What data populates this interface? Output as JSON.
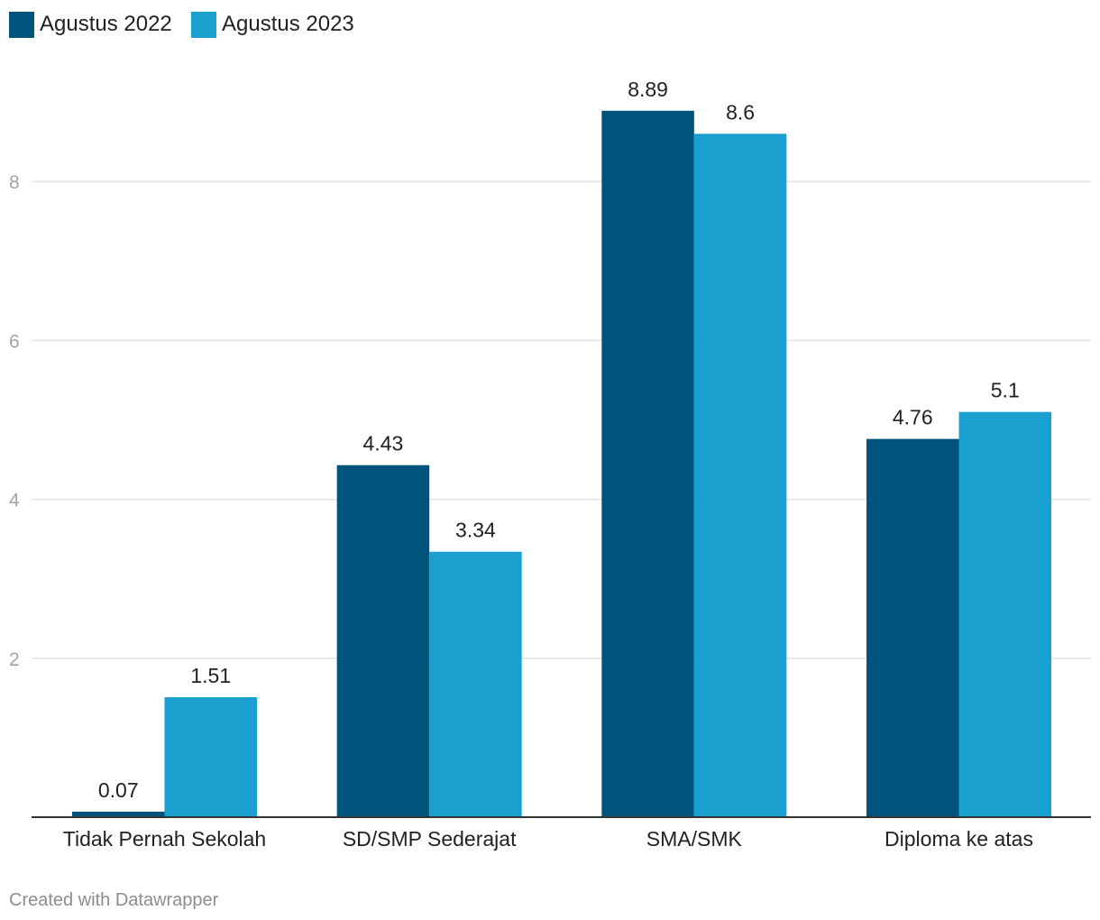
{
  "chart_data": {
    "type": "bar",
    "title": "",
    "xlabel": "",
    "ylabel": "",
    "categories": [
      "Tidak Pernah Sekolah",
      "SD/SMP Sederajat",
      "SMA/SMK",
      "Diploma ke atas"
    ],
    "series": [
      {
        "name": "Agustus 2022",
        "color": "#00547c",
        "values": [
          0.07,
          4.43,
          8.89,
          4.76
        ],
        "labels": [
          "0.07",
          "4.43",
          "8.89",
          "4.76"
        ]
      },
      {
        "name": "Agustus 2023",
        "color": "#1aa0cf",
        "values": [
          1.51,
          3.34,
          8.6,
          5.1
        ],
        "labels": [
          "1.51",
          "3.34",
          "8.6",
          "5.1"
        ]
      }
    ],
    "ylim": [
      0,
      8.89
    ],
    "yticks": [
      2,
      4,
      6,
      8
    ],
    "ytick_labels": [
      "2",
      "4",
      "6",
      "8"
    ],
    "grid": true,
    "legend": "top-left"
  },
  "credit": "Created with Datawrapper"
}
